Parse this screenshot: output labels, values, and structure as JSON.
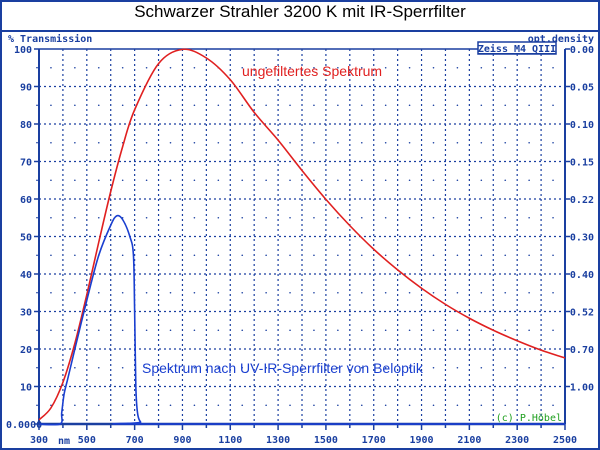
{
  "chart_data": {
    "type": "line",
    "title": "Schwarzer Strahler 3200 K mit IR-Sperrfilter",
    "ylabel": "% Transmission",
    "y2label": "opt.density",
    "xunit": "nm",
    "xlim": [
      300,
      2500
    ],
    "ylim": [
      0,
      100
    ],
    "xticks": [
      300,
      500,
      700,
      900,
      1100,
      1300,
      1500,
      1700,
      1900,
      2100,
      2300,
      2500
    ],
    "yticks": [
      {
        "v": 0,
        "t": "0.0000"
      },
      {
        "v": 10,
        "t": "10"
      },
      {
        "v": 20,
        "t": "20"
      },
      {
        "v": 30,
        "t": "30"
      },
      {
        "v": 40,
        "t": "40"
      },
      {
        "v": 50,
        "t": "50"
      },
      {
        "v": 60,
        "t": "60"
      },
      {
        "v": 70,
        "t": "70"
      },
      {
        "v": 80,
        "t": "80"
      },
      {
        "v": 90,
        "t": "90"
      },
      {
        "v": 100,
        "t": "100"
      }
    ],
    "y2ticks": [
      {
        "v": 100,
        "t": "0.00"
      },
      {
        "v": 90,
        "t": "0.05"
      },
      {
        "v": 80,
        "t": "0.10"
      },
      {
        "v": 70,
        "t": "0.15"
      },
      {
        "v": 60,
        "t": "0.22"
      },
      {
        "v": 50,
        "t": "0.30"
      },
      {
        "v": 40,
        "t": "0.40"
      },
      {
        "v": 30,
        "t": "0.52"
      },
      {
        "v": 20,
        "t": "0.70"
      },
      {
        "v": 10,
        "t": "1.00"
      }
    ],
    "grid": true,
    "series": [
      {
        "name": "ungefiltertes Spektrum",
        "color": "#e02020",
        "x": [
          300,
          350,
          400,
          450,
          500,
          550,
          600,
          650,
          700,
          800,
          900,
          1000,
          1100,
          1200,
          1300,
          1400,
          1500,
          1600,
          1700,
          1800,
          1900,
          2000,
          2100,
          2200,
          2300,
          2400,
          2500
        ],
        "y": [
          1.1,
          4.3,
          11.1,
          21.5,
          34.5,
          48.5,
          62,
          74,
          83.8,
          96.1,
          99.9,
          97.6,
          91.8,
          83.1,
          75.7,
          67.6,
          59.9,
          52.9,
          46.6,
          41.1,
          36.2,
          31.9,
          28.2,
          25.0,
          22.2,
          19.7,
          17.6
        ]
      },
      {
        "name": "Spektrum nach UV-IR-Sperrfilter von Beloptik",
        "color": "#1a3fd0",
        "x": [
          300,
          388,
          395,
          405,
          420,
          450,
          500,
          550,
          600,
          625,
          650,
          680,
          695,
          700,
          705,
          712,
          725,
          745,
          2500
        ],
        "y": [
          0,
          0,
          3,
          8,
          12,
          20,
          33,
          45,
          53,
          55.5,
          54.5,
          50,
          45,
          30,
          10,
          3,
          0.5,
          0,
          0
        ]
      }
    ],
    "annotations": {
      "maker": "Zeiss M4 QIII",
      "copyright": "(c) P.Höbel"
    }
  }
}
